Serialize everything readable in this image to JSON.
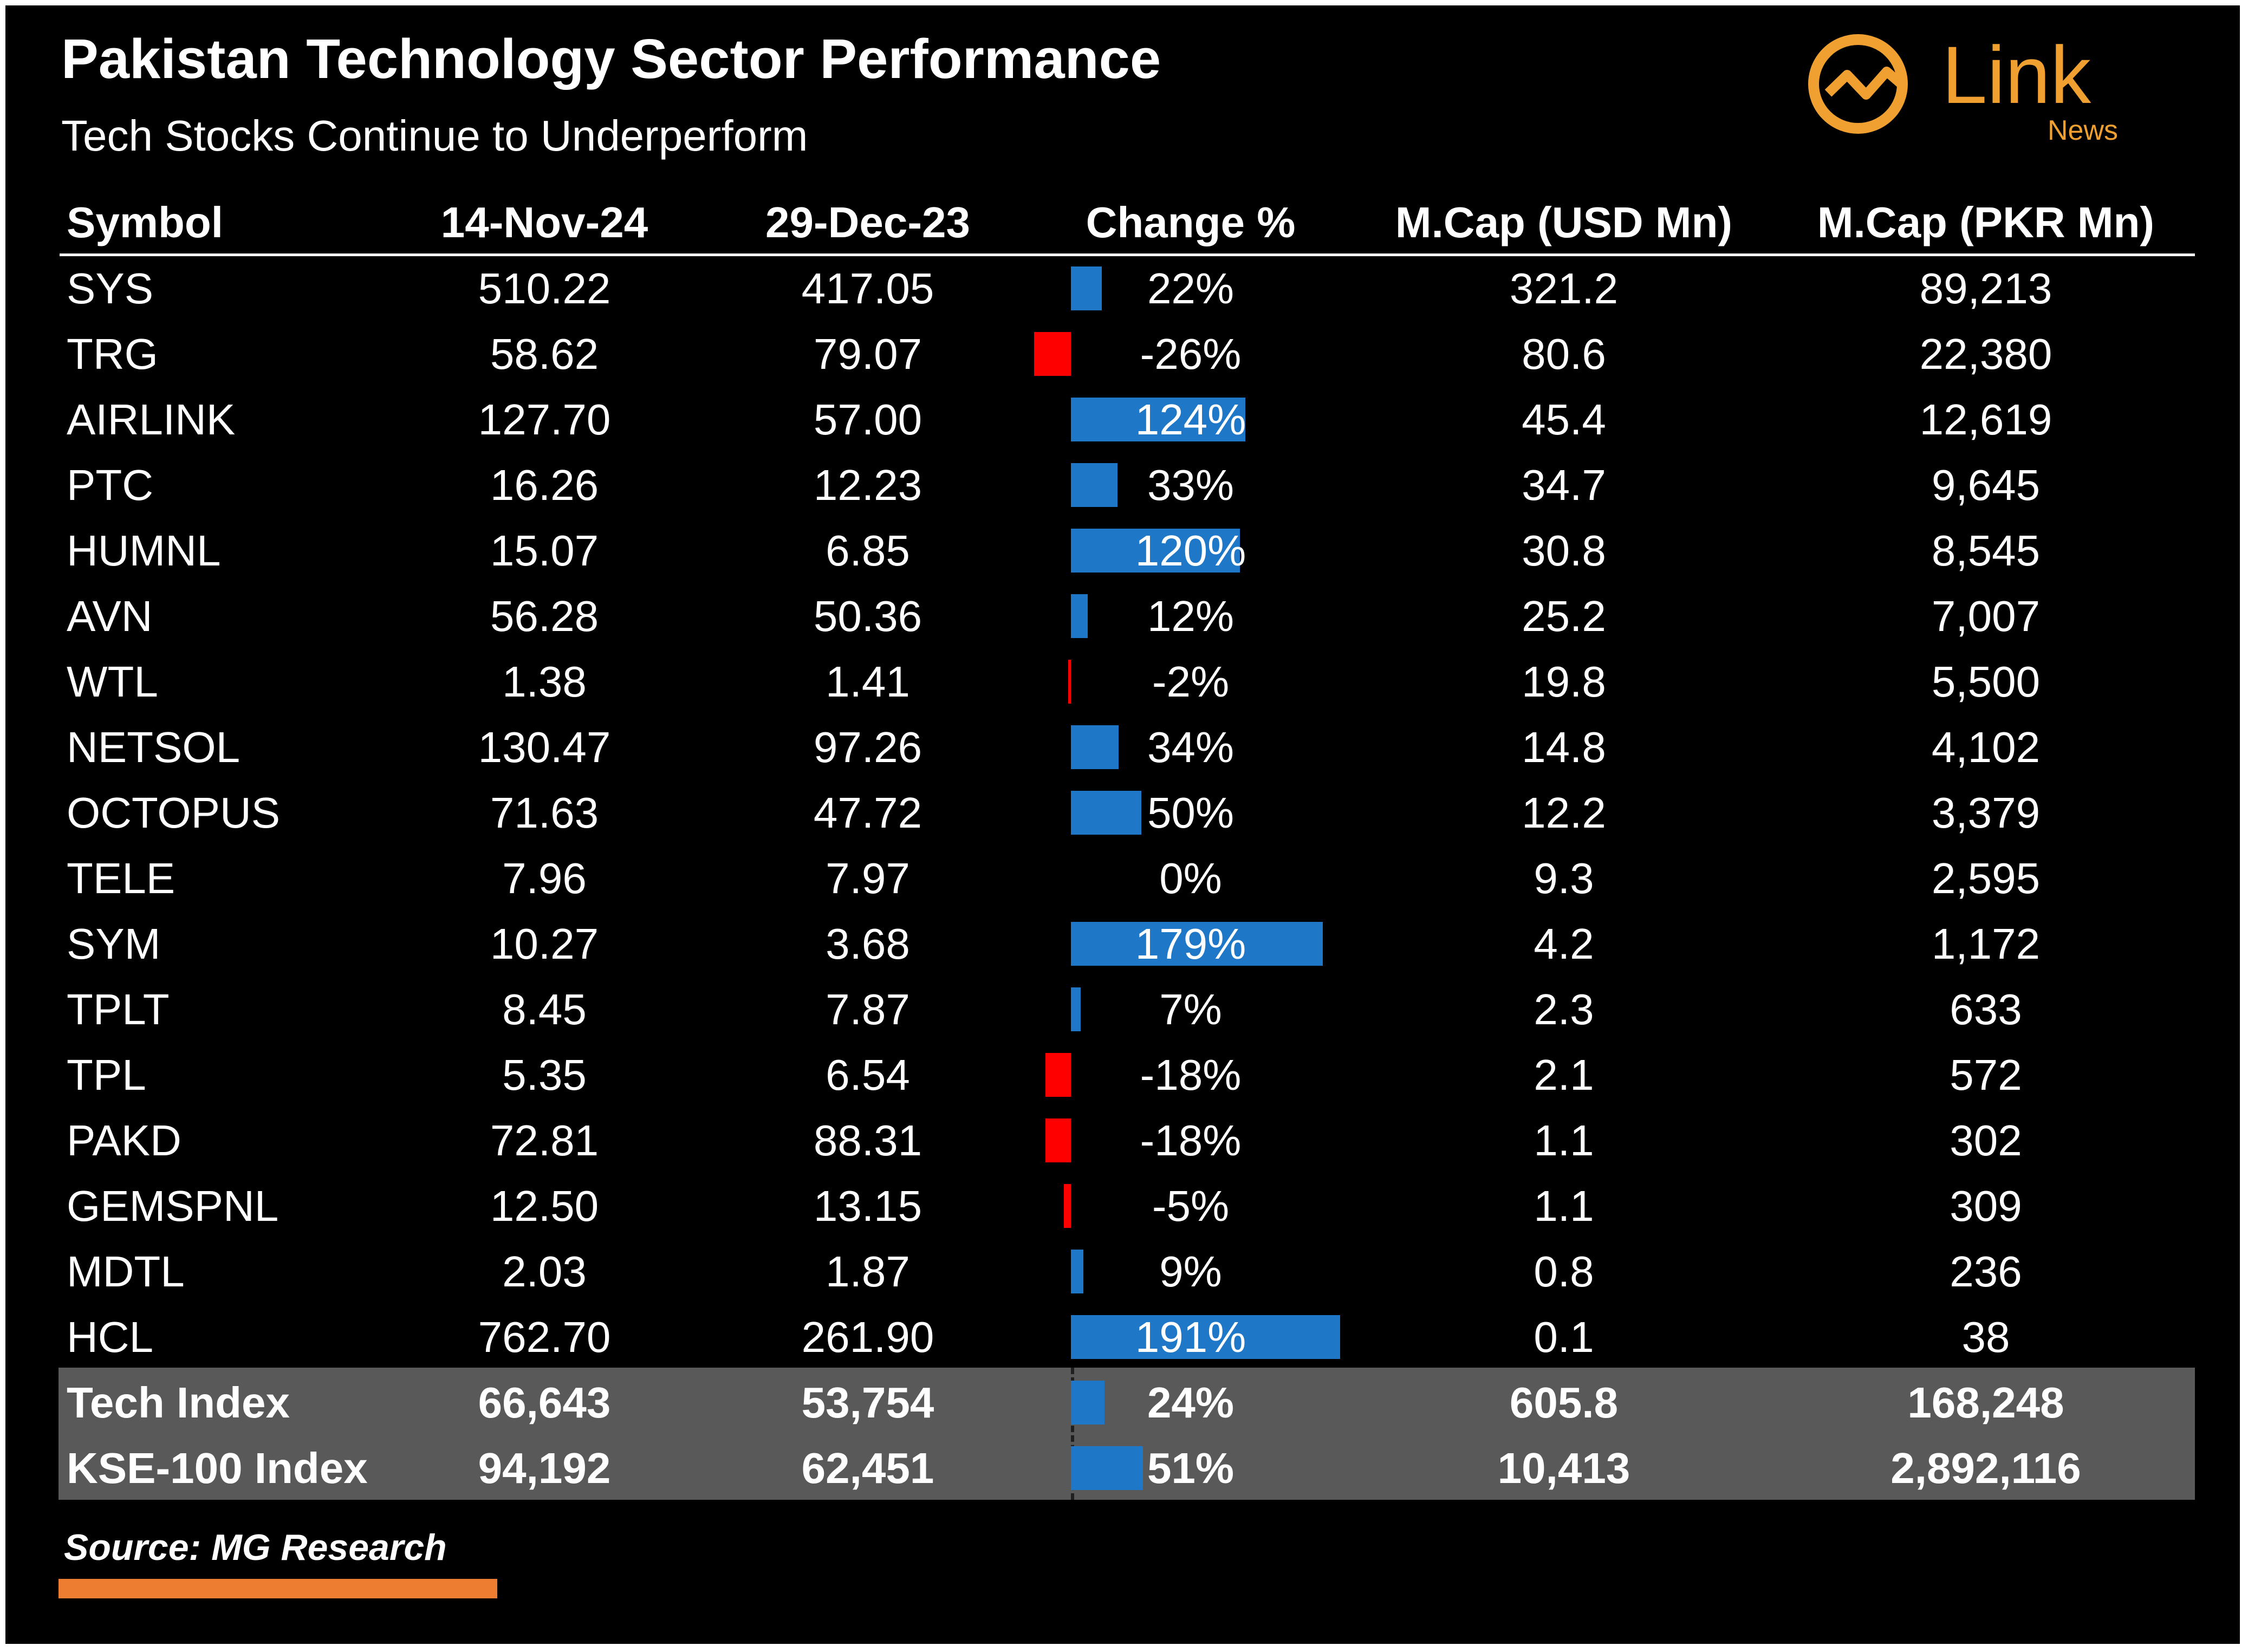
{
  "title": "Pakistan Technology Sector Performance",
  "subtitle": "Tech Stocks Continue to Underperform",
  "logo": {
    "text": "Link",
    "subtext": "News",
    "color": "#F0A030"
  },
  "colors": {
    "positive": "#1F77C8",
    "negative": "#FF0000",
    "summary_bg": "#595959",
    "source_line": "#ED7D31"
  },
  "source": "Source: MG Research",
  "chart_data": {
    "type": "table",
    "columns": [
      "Symbol",
      "14-Nov-24",
      "29-Dec-23",
      "Change %",
      "M.Cap (USD Mn)",
      "M.Cap (PKR Mn)"
    ],
    "rows": [
      {
        "symbol": "SYS",
        "nov24": "510.22",
        "dec23": "417.05",
        "change": "22%",
        "change_value": 22,
        "mcap_usd": "321.2",
        "mcap_pkr": "89,213"
      },
      {
        "symbol": "TRG",
        "nov24": "58.62",
        "dec23": "79.07",
        "change": "-26%",
        "change_value": -26,
        "mcap_usd": "80.6",
        "mcap_pkr": "22,380"
      },
      {
        "symbol": "AIRLINK",
        "nov24": "127.70",
        "dec23": "57.00",
        "change": "124%",
        "change_value": 124,
        "mcap_usd": "45.4",
        "mcap_pkr": "12,619"
      },
      {
        "symbol": "PTC",
        "nov24": "16.26",
        "dec23": "12.23",
        "change": "33%",
        "change_value": 33,
        "mcap_usd": "34.7",
        "mcap_pkr": "9,645"
      },
      {
        "symbol": "HUMNL",
        "nov24": "15.07",
        "dec23": "6.85",
        "change": "120%",
        "change_value": 120,
        "mcap_usd": "30.8",
        "mcap_pkr": "8,545"
      },
      {
        "symbol": "AVN",
        "nov24": "56.28",
        "dec23": "50.36",
        "change": "12%",
        "change_value": 12,
        "mcap_usd": "25.2",
        "mcap_pkr": "7,007"
      },
      {
        "symbol": "WTL",
        "nov24": "1.38",
        "dec23": "1.41",
        "change": "-2%",
        "change_value": -2,
        "mcap_usd": "19.8",
        "mcap_pkr": "5,500"
      },
      {
        "symbol": "NETSOL",
        "nov24": "130.47",
        "dec23": "97.26",
        "change": "34%",
        "change_value": 34,
        "mcap_usd": "14.8",
        "mcap_pkr": "4,102"
      },
      {
        "symbol": "OCTOPUS",
        "nov24": "71.63",
        "dec23": "47.72",
        "change": "50%",
        "change_value": 50,
        "mcap_usd": "12.2",
        "mcap_pkr": "3,379"
      },
      {
        "symbol": "TELE",
        "nov24": "7.96",
        "dec23": "7.97",
        "change": "0%",
        "change_value": 0,
        "mcap_usd": "9.3",
        "mcap_pkr": "2,595"
      },
      {
        "symbol": "SYM",
        "nov24": "10.27",
        "dec23": "3.68",
        "change": "179%",
        "change_value": 179,
        "mcap_usd": "4.2",
        "mcap_pkr": "1,172"
      },
      {
        "symbol": "TPLT",
        "nov24": "8.45",
        "dec23": "7.87",
        "change": "7%",
        "change_value": 7,
        "mcap_usd": "2.3",
        "mcap_pkr": "633"
      },
      {
        "symbol": "TPL",
        "nov24": "5.35",
        "dec23": "6.54",
        "change": "-18%",
        "change_value": -18,
        "mcap_usd": "2.1",
        "mcap_pkr": "572"
      },
      {
        "symbol": "PAKD",
        "nov24": "72.81",
        "dec23": "88.31",
        "change": "-18%",
        "change_value": -18,
        "mcap_usd": "1.1",
        "mcap_pkr": "302"
      },
      {
        "symbol": "GEMSPNL",
        "nov24": "12.50",
        "dec23": "13.15",
        "change": "-5%",
        "change_value": -5,
        "mcap_usd": "1.1",
        "mcap_pkr": "309"
      },
      {
        "symbol": "MDTL",
        "nov24": "2.03",
        "dec23": "1.87",
        "change": "9%",
        "change_value": 9,
        "mcap_usd": "0.8",
        "mcap_pkr": "236"
      },
      {
        "symbol": "HCL",
        "nov24": "762.70",
        "dec23": "261.90",
        "change": "191%",
        "change_value": 191,
        "mcap_usd": "0.1",
        "mcap_pkr": "38"
      }
    ],
    "summary_rows": [
      {
        "symbol": "Tech Index",
        "nov24": "66,643",
        "dec23": "53,754",
        "change": "24%",
        "change_value": 24,
        "mcap_usd": "605.8",
        "mcap_pkr": "168,248"
      },
      {
        "symbol": "KSE-100 Index",
        "nov24": "94,192",
        "dec23": "62,451",
        "change": "51%",
        "change_value": 51,
        "mcap_usd": "10,413",
        "mcap_pkr": "2,892,116"
      }
    ]
  }
}
